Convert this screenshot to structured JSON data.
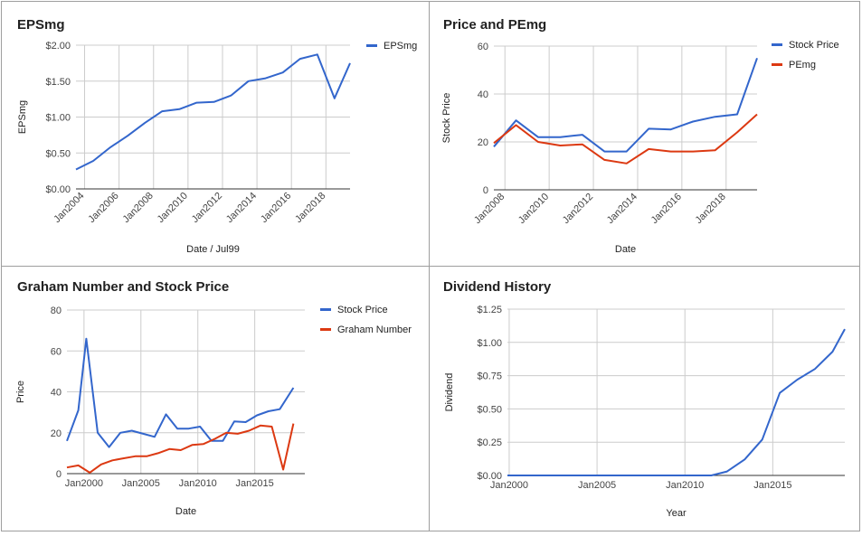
{
  "colors": {
    "blue": "#3366cc",
    "red": "#dc3912",
    "grid": "#cccccc",
    "axis": "#333333"
  },
  "chart_data": [
    {
      "type": "line",
      "title": "EPSmg",
      "xlabel": "Date / Jul99",
      "ylabel": "EPSmg",
      "ylim": [
        0,
        2.0
      ],
      "xlim": [
        2003.5,
        2019.4
      ],
      "yticks": [
        0,
        0.5,
        1.0,
        1.5,
        2.0
      ],
      "ytick_labels": [
        "$0.00",
        "$0.50",
        "$1.00",
        "$1.50",
        "$2.00"
      ],
      "xticks": [
        2004,
        2006,
        2008,
        2010,
        2012,
        2014,
        2016,
        2018
      ],
      "xtick_labels": [
        "Jan2004",
        "Jan2006",
        "Jan2008",
        "Jan2010",
        "Jan2012",
        "Jan2014",
        "Jan2016",
        "Jan2018"
      ],
      "x_tick_rotate": true,
      "legend_position": "right",
      "grid": true,
      "series": [
        {
          "name": "EPSmg",
          "color": "blue",
          "x": [
            2003.5,
            2004.5,
            2005.5,
            2006.5,
            2007.5,
            2008.5,
            2009.5,
            2010.5,
            2011.5,
            2012.5,
            2013.5,
            2014.5,
            2015.5,
            2016.5,
            2017.5,
            2018.5,
            2019.4
          ],
          "y": [
            0.27,
            0.39,
            0.58,
            0.74,
            0.92,
            1.08,
            1.11,
            1.2,
            1.21,
            1.3,
            1.5,
            1.54,
            1.62,
            1.81,
            1.87,
            1.26,
            1.75
          ]
        }
      ]
    },
    {
      "type": "line",
      "title": "Price and PEmg",
      "xlabel": "Date",
      "ylabel": "Stock Price",
      "ylim": [
        0,
        60
      ],
      "xlim": [
        2007.5,
        2019.4
      ],
      "yticks": [
        0,
        20,
        40,
        60
      ],
      "ytick_labels": [
        "0",
        "20",
        "40",
        "60"
      ],
      "xticks": [
        2008,
        2010,
        2012,
        2014,
        2016,
        2018
      ],
      "xtick_labels": [
        "Jan2008",
        "Jan2010",
        "Jan2012",
        "Jan2014",
        "Jan2016",
        "Jan2018"
      ],
      "x_tick_rotate": true,
      "legend_position": "right",
      "grid": true,
      "series": [
        {
          "name": "Stock Price",
          "color": "blue",
          "x": [
            2007.5,
            2008.5,
            2009.5,
            2010.5,
            2011.5,
            2012.5,
            2013.5,
            2014.5,
            2015.5,
            2016.5,
            2017.5,
            2018.5,
            2019.4
          ],
          "y": [
            18,
            29,
            22,
            22,
            23,
            16,
            16,
            25.5,
            25.2,
            28.5,
            30.5,
            31.5,
            55
          ]
        },
        {
          "name": "PEmg",
          "color": "red",
          "x": [
            2007.5,
            2008.5,
            2009.5,
            2010.5,
            2011.5,
            2012.5,
            2013.5,
            2014.5,
            2015.5,
            2016.5,
            2017.5,
            2018.5,
            2019.4
          ],
          "y": [
            19.5,
            27,
            20,
            18.5,
            19,
            12.5,
            11,
            17,
            16,
            16,
            16.5,
            24,
            31.5
          ]
        }
      ]
    },
    {
      "type": "line",
      "title": "Graham Number and Stock Price",
      "xlabel": "Date",
      "ylabel": "Price",
      "ylim": [
        0,
        80
      ],
      "xlim": [
        1998.5,
        2019.4
      ],
      "yticks": [
        0,
        20,
        40,
        60,
        80
      ],
      "ytick_labels": [
        "0",
        "20",
        "40",
        "60",
        "80"
      ],
      "xticks": [
        2000,
        2005,
        2010,
        2015
      ],
      "xtick_labels": [
        "Jan2000",
        "Jan2005",
        "Jan2010",
        "Jan2015"
      ],
      "x_tick_rotate": false,
      "legend_position": "right",
      "grid": true,
      "series": [
        {
          "name": "Stock Price",
          "color": "blue",
          "x": [
            1998.5,
            1999.5,
            2000.2,
            2001.2,
            2002.2,
            2003.2,
            2004.2,
            2005.2,
            2006.2,
            2007.2,
            2008.2,
            2009.2,
            2010.2,
            2011.2,
            2012.2,
            2013.2,
            2014.2,
            2015.2,
            2016.2,
            2017.2,
            2018.4
          ],
          "y": [
            16,
            31,
            66,
            20,
            13,
            20,
            21,
            19.5,
            18,
            29,
            22,
            22,
            23,
            16,
            16,
            25.5,
            25.2,
            28.5,
            30.5,
            31.5,
            42
          ]
        },
        {
          "name": "Graham Number",
          "color": "red",
          "x": [
            1998.5,
            1999.5,
            2000.5,
            2001.5,
            2002.5,
            2003.5,
            2004.5,
            2005.5,
            2006.5,
            2007.5,
            2008.5,
            2009.5,
            2010.5,
            2011.5,
            2012.5,
            2013.5,
            2014.5,
            2015.5,
            2016.5,
            2017.5,
            2018.4
          ],
          "y": [
            3,
            4,
            0.5,
            4.5,
            6.5,
            7.5,
            8.5,
            8.5,
            10,
            12,
            11.5,
            14,
            14.5,
            17,
            20,
            19.5,
            21,
            23.5,
            23,
            2,
            24.5
          ]
        }
      ]
    },
    {
      "type": "line",
      "title": "Dividend History",
      "xlabel": "Year",
      "ylabel": "Dividend",
      "ylim": [
        0,
        1.25
      ],
      "xlim": [
        1999.9,
        2019.1
      ],
      "yticks": [
        0,
        0.25,
        0.5,
        0.75,
        1.0,
        1.25
      ],
      "ytick_labels": [
        "$0.00",
        "$0.25",
        "$0.50",
        "$0.75",
        "$1.00",
        "$1.25"
      ],
      "xticks": [
        2000,
        2005,
        2010,
        2015
      ],
      "xtick_labels": [
        "Jan2000",
        "Jan2005",
        "Jan2010",
        "Jan2015"
      ],
      "x_tick_rotate": false,
      "legend_position": "none",
      "grid": true,
      "series": [
        {
          "color": "blue",
          "x": [
            1999.9,
            2011.5,
            2012.4,
            2013.4,
            2014.4,
            2015.4,
            2016.4,
            2017.4,
            2018.4,
            2019.1
          ],
          "y": [
            0,
            0,
            0.03,
            0.12,
            0.27,
            0.62,
            0.72,
            0.8,
            0.93,
            1.1
          ]
        }
      ]
    }
  ]
}
